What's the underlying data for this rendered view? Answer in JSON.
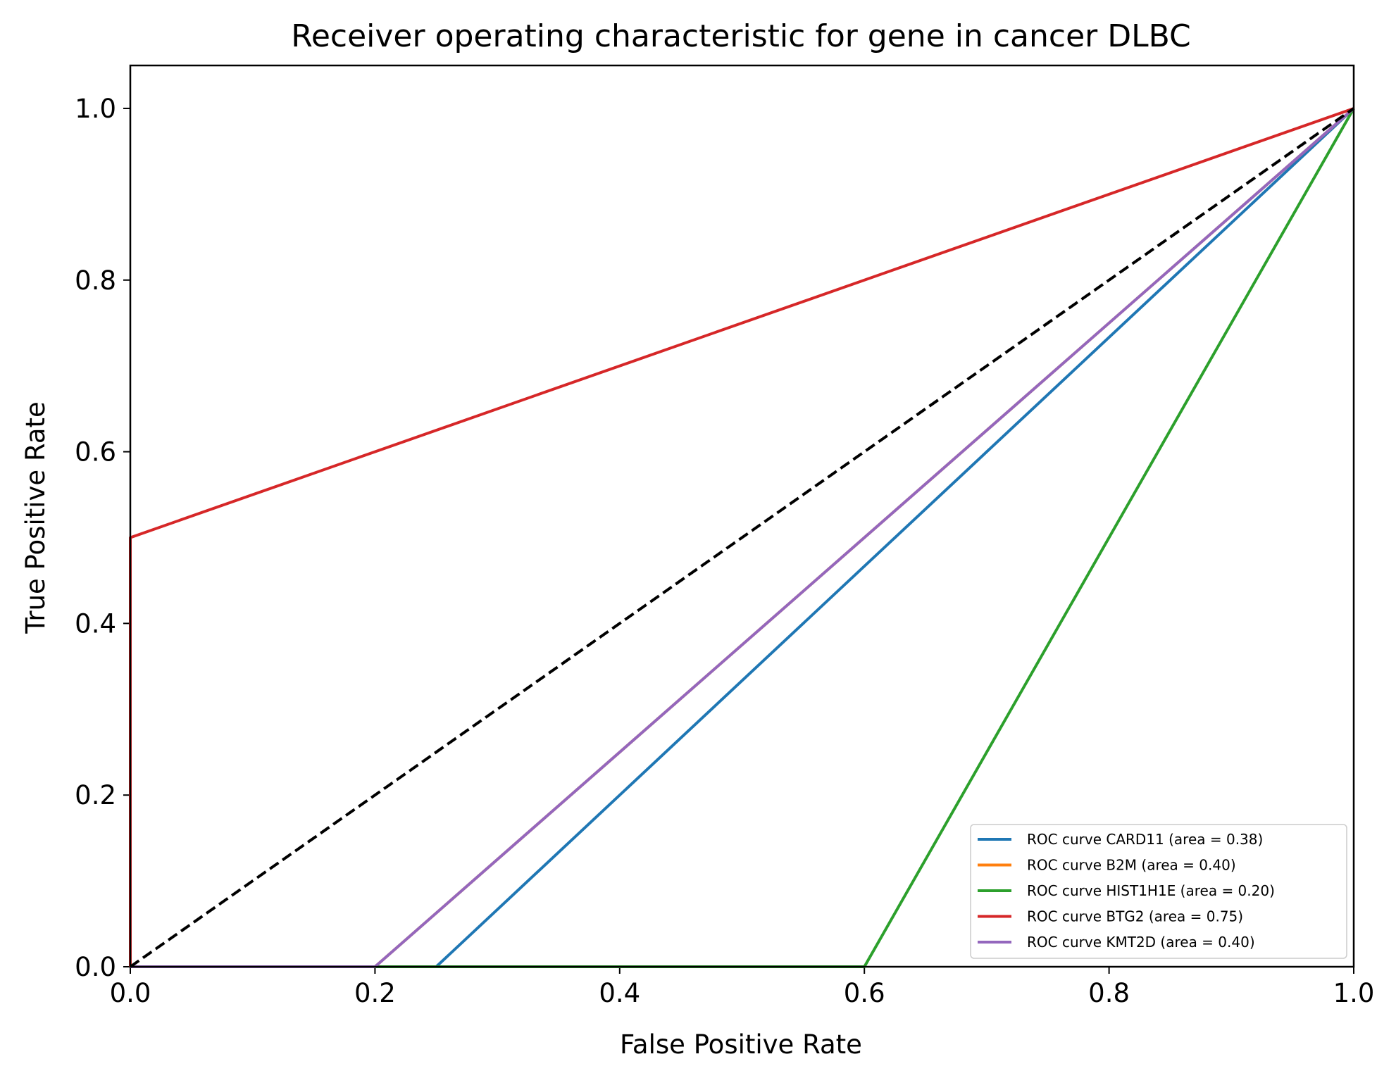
{
  "chart_data": {
    "type": "line",
    "title": "Receiver operating characteristic for gene in cancer DLBC",
    "xlabel": "False Positive Rate",
    "ylabel": "True Positive Rate",
    "xlim": [
      0.0,
      1.0
    ],
    "ylim": [
      0.0,
      1.05
    ],
    "xticks": [
      "0.0",
      "0.2",
      "0.4",
      "0.6",
      "0.8",
      "1.0"
    ],
    "yticks": [
      "0.0",
      "0.2",
      "0.4",
      "0.6",
      "0.8",
      "1.0"
    ],
    "grid": false,
    "legend_position": "lower right",
    "series": [
      {
        "name": "ROC curve CARD11 (area = 0.38)",
        "color": "#1f77b4",
        "x": [
          0.0,
          0.25,
          1.0
        ],
        "y": [
          0.0,
          0.0,
          1.0
        ]
      },
      {
        "name": "ROC curve B2M (area = 0.40)",
        "color": "#ff7f0e",
        "x": [
          0.0,
          0.2,
          1.0
        ],
        "y": [
          0.0,
          0.0,
          1.0
        ]
      },
      {
        "name": "ROC curve HIST1H1E (area = 0.20)",
        "color": "#2ca02c",
        "x": [
          0.0,
          0.6,
          1.0
        ],
        "y": [
          0.0,
          0.0,
          1.0
        ]
      },
      {
        "name": "ROC curve BTG2 (area = 0.75)",
        "color": "#d62728",
        "x": [
          0.0,
          0.0,
          1.0
        ],
        "y": [
          0.0,
          0.5,
          1.0
        ]
      },
      {
        "name": "ROC curve KMT2D (area = 0.40)",
        "color": "#9467bd",
        "x": [
          0.0,
          0.2,
          1.0
        ],
        "y": [
          0.0,
          0.0,
          1.0
        ]
      }
    ],
    "reference_line": {
      "color": "#000000",
      "style": "dashed",
      "x": [
        0.0,
        1.0
      ],
      "y": [
        0.0,
        1.0
      ]
    }
  }
}
